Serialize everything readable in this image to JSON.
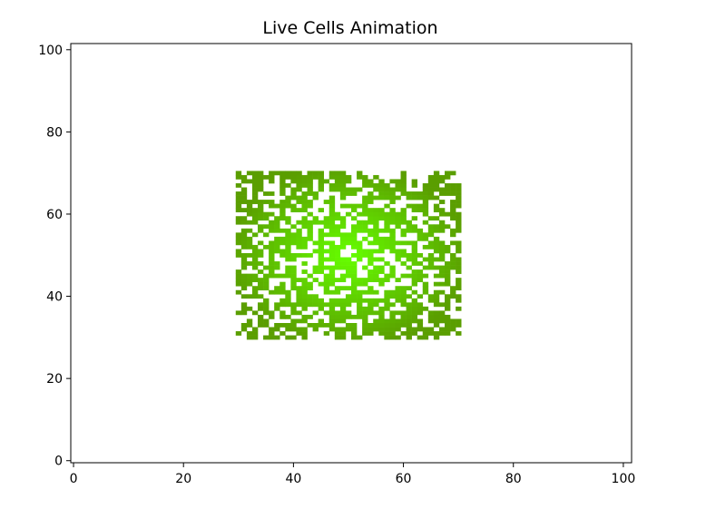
{
  "chart_data": {
    "type": "heatmap",
    "title": "Live Cells Animation",
    "xlabel": "",
    "ylabel": "",
    "xlim": [
      -0.5,
      101.5
    ],
    "ylim": [
      -0.5,
      101.5
    ],
    "xticks": [
      0,
      20,
      40,
      60,
      80,
      100
    ],
    "yticks": [
      0,
      20,
      40,
      60,
      80,
      100
    ],
    "xtick_labels": [
      "0",
      "20",
      "40",
      "60",
      "80",
      "100"
    ],
    "ytick_labels": [
      "0",
      "20",
      "40",
      "60",
      "80",
      "100"
    ],
    "grid": false,
    "live_region": {
      "x": [
        30,
        70
      ],
      "y": [
        30,
        70
      ]
    },
    "live_fraction": 0.62,
    "colors": {
      "center": "#66ff00",
      "edge": "#5a9e00",
      "axes": "#000000",
      "background": "#ffffff"
    }
  }
}
